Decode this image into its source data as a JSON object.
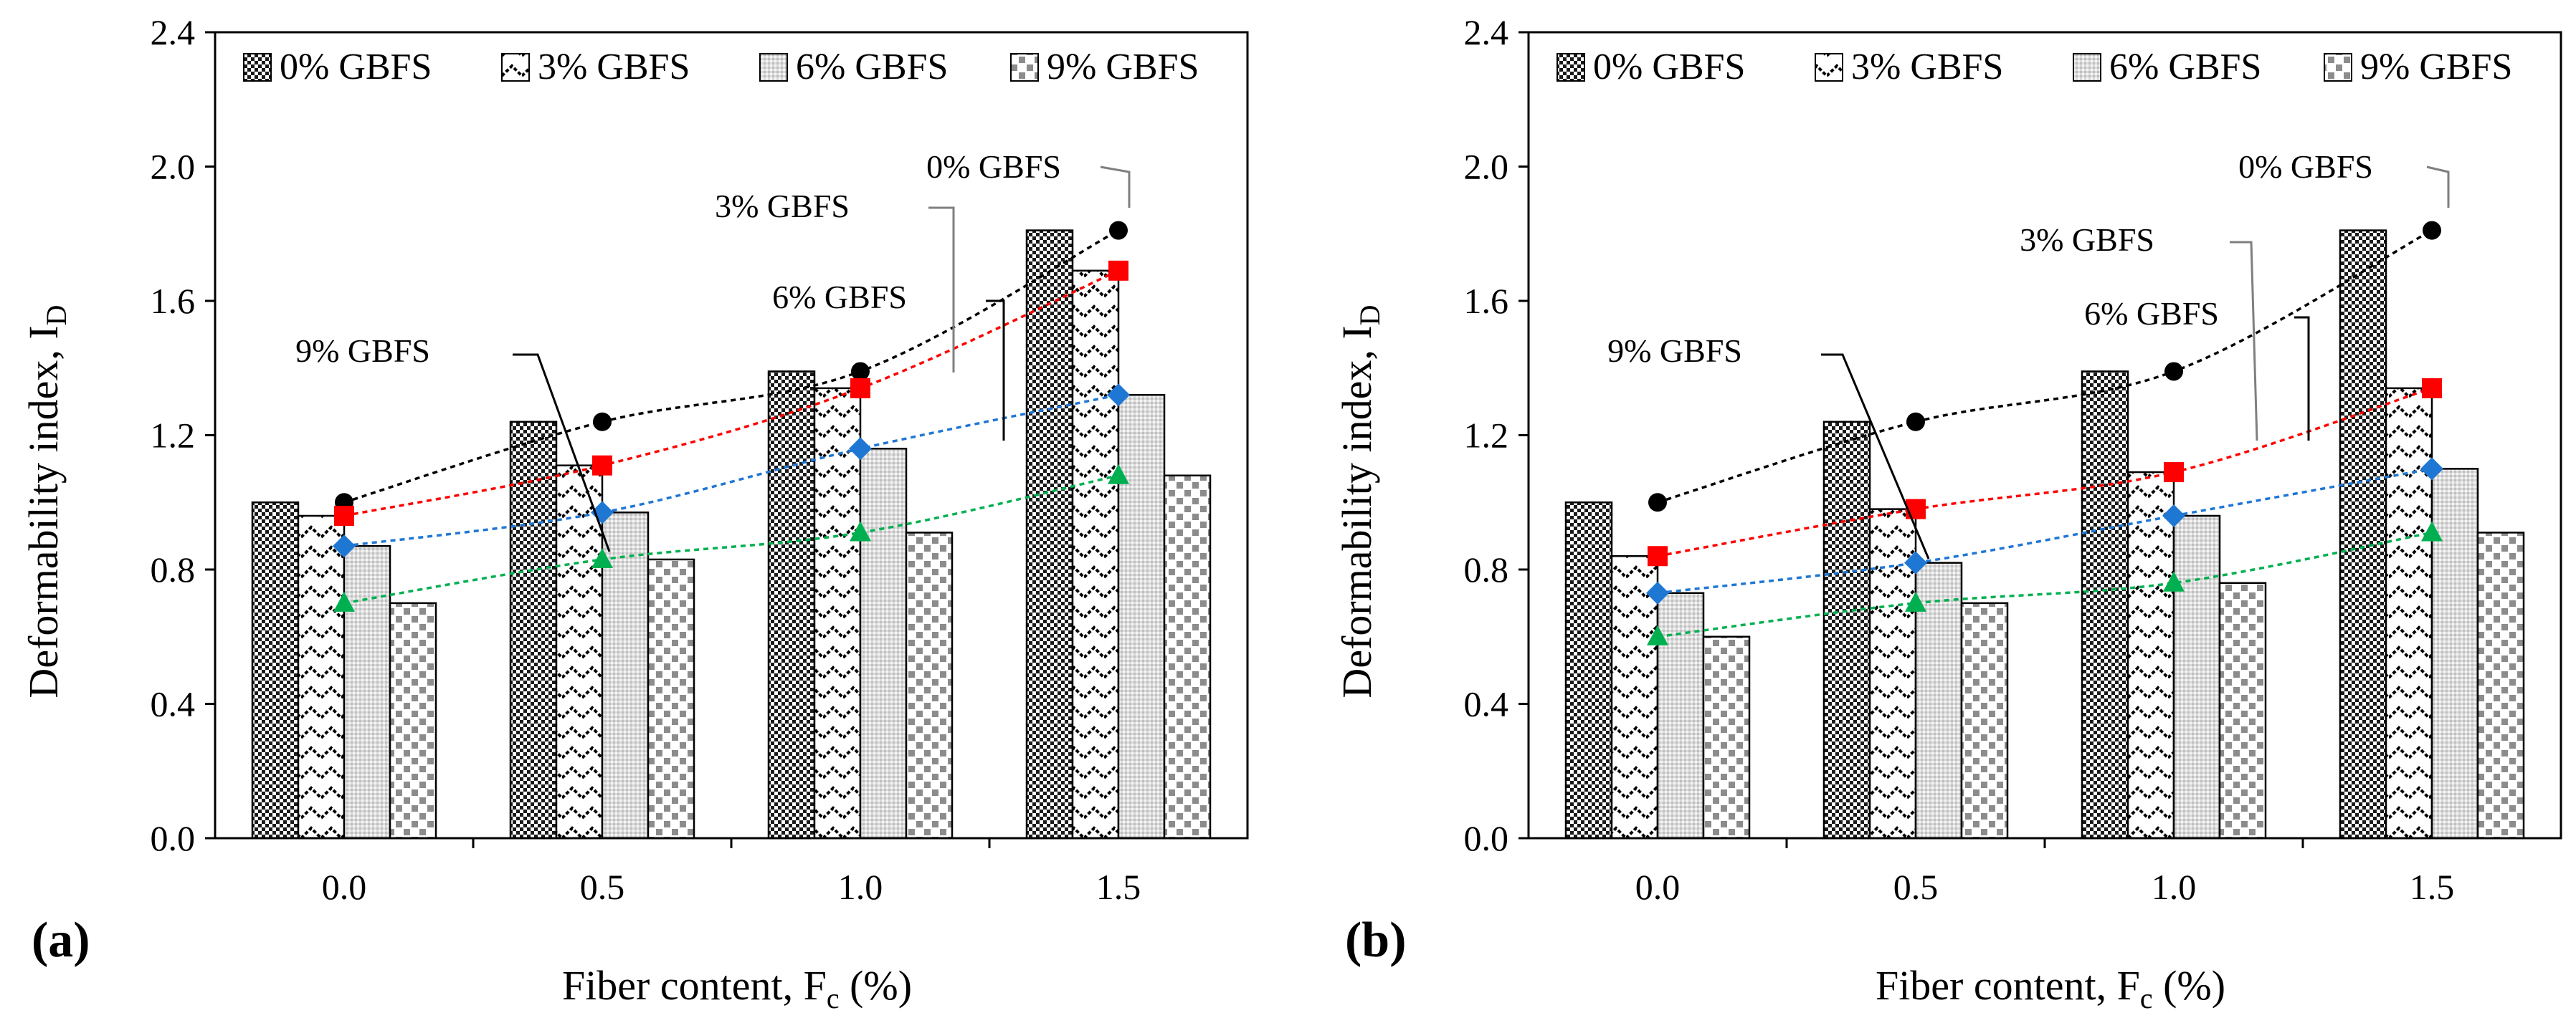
{
  "figure": {
    "series_styles": [
      {
        "name": "0% GBFS",
        "pattern": "checker",
        "marker": "circle",
        "color": "#000000"
      },
      {
        "name": "3% GBFS",
        "pattern": "zigzag",
        "marker": "square",
        "color": "#ff0000"
      },
      {
        "name": "6% GBFS",
        "pattern": "light-dots",
        "marker": "diamond",
        "color": "#1f77d4"
      },
      {
        "name": "9% GBFS",
        "pattern": "grey-blocks",
        "marker": "triangle",
        "color": "#00b050"
      }
    ]
  },
  "chart_data": [
    {
      "type": "bar",
      "panel": "(a)",
      "xlabel": "Fiber content, F",
      "xlabel_sub": "c",
      "xlabel_suffix": " (%)",
      "ylabel": "Deformability index, I",
      "ylabel_sub": "D",
      "categories": [
        "0.0",
        "0.5",
        "1.0",
        "1.5"
      ],
      "yticks": [
        "0.0",
        "0.4",
        "0.8",
        "1.2",
        "1.6",
        "2.0",
        "2.4"
      ],
      "ylim": [
        0,
        2.4
      ],
      "legend": [
        "0% GBFS",
        "3% GBFS",
        "6% GBFS",
        "9% GBFS"
      ],
      "series": [
        {
          "name": "0% GBFS",
          "values": [
            1.0,
            1.24,
            1.39,
            1.81
          ]
        },
        {
          "name": "3% GBFS",
          "values": [
            0.96,
            1.11,
            1.34,
            1.69
          ]
        },
        {
          "name": "6% GBFS",
          "values": [
            0.87,
            0.97,
            1.16,
            1.32
          ]
        },
        {
          "name": "9% GBFS",
          "values": [
            0.7,
            0.83,
            0.91,
            1.08
          ]
        }
      ],
      "annotations": [
        {
          "text": "0% GBFS"
        },
        {
          "text": "3% GBFS"
        },
        {
          "text": "6% GBFS"
        },
        {
          "text": "9% GBFS"
        }
      ]
    },
    {
      "type": "bar",
      "panel": "(b)",
      "xlabel": "Fiber content, F",
      "xlabel_sub": "c",
      "xlabel_suffix": " (%)",
      "ylabel": "Deformability index, I",
      "ylabel_sub": "D",
      "categories": [
        "0.0",
        "0.5",
        "1.0",
        "1.5"
      ],
      "yticks": [
        "0.0",
        "0.4",
        "0.8",
        "1.2",
        "1.6",
        "2.0",
        "2.4"
      ],
      "ylim": [
        0,
        2.4
      ],
      "legend": [
        "0% GBFS",
        "3% GBFS",
        "6% GBFS",
        "9% GBFS"
      ],
      "series": [
        {
          "name": "0% GBFS",
          "values": [
            1.0,
            1.24,
            1.39,
            1.81
          ]
        },
        {
          "name": "3% GBFS",
          "values": [
            0.84,
            0.98,
            1.09,
            1.34
          ]
        },
        {
          "name": "6% GBFS",
          "values": [
            0.73,
            0.82,
            0.96,
            1.1
          ]
        },
        {
          "name": "9% GBFS",
          "values": [
            0.6,
            0.7,
            0.76,
            0.91
          ]
        }
      ],
      "annotations": [
        {
          "text": "0% GBFS"
        },
        {
          "text": "3% GBFS"
        },
        {
          "text": "6% GBFS"
        },
        {
          "text": "9% GBFS"
        }
      ]
    }
  ]
}
